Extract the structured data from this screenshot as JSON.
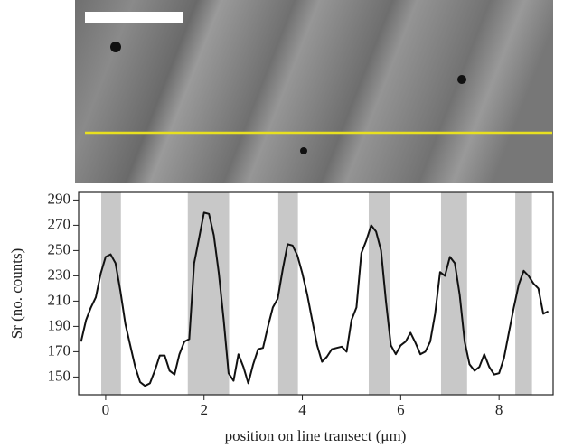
{
  "chart_data": {
    "type": "line",
    "x_label": "position on line transect (μm)",
    "y_label": "Sr (no. counts)",
    "x": [
      -0.5,
      -0.4,
      -0.3,
      -0.2,
      -0.1,
      0,
      0.1,
      0.2,
      0.3,
      0.4,
      0.5,
      0.6,
      0.7,
      0.8,
      0.9,
      1,
      1.1,
      1.2,
      1.3,
      1.4,
      1.5,
      1.6,
      1.7,
      1.8,
      1.9,
      2,
      2.1,
      2.2,
      2.3,
      2.4,
      2.5,
      2.6,
      2.7,
      2.8,
      2.9,
      3,
      3.1,
      3.2,
      3.3,
      3.4,
      3.5,
      3.6,
      3.7,
      3.8,
      3.9,
      4,
      4.1,
      4.2,
      4.3,
      4.4,
      4.5,
      4.6,
      4.7,
      4.8,
      4.9,
      5,
      5.1,
      5.2,
      5.3,
      5.4,
      5.5,
      5.6,
      5.7,
      5.8,
      5.9,
      6,
      6.1,
      6.2,
      6.3,
      6.4,
      6.5,
      6.6,
      6.7,
      6.8,
      6.9,
      7,
      7.1,
      7.2,
      7.3,
      7.4,
      7.5,
      7.6,
      7.7,
      7.8,
      7.9,
      8,
      8.1,
      8.2,
      8.3,
      8.4,
      8.5,
      8.6,
      8.7,
      8.8,
      8.9,
      9
    ],
    "values": [
      178,
      195,
      205,
      213,
      232,
      245,
      247,
      240,
      218,
      192,
      175,
      158,
      146,
      143,
      145,
      155,
      167,
      167,
      155,
      152,
      168,
      178,
      180,
      240,
      260,
      280,
      279,
      262,
      232,
      195,
      153,
      147,
      168,
      158,
      145,
      160,
      172,
      173,
      190,
      205,
      212,
      235,
      255,
      254,
      246,
      232,
      215,
      195,
      175,
      162,
      166,
      172,
      173,
      174,
      170,
      195,
      205,
      248,
      258,
      270,
      265,
      250,
      210,
      175,
      168,
      175,
      178,
      185,
      177,
      168,
      170,
      178,
      200,
      233,
      230,
      245,
      240,
      215,
      178,
      160,
      155,
      158,
      168,
      158,
      152,
      153,
      165,
      185,
      205,
      223,
      234,
      230,
      224,
      220,
      200,
      202
    ],
    "color": "#111111",
    "bands": [
      [
        -0.09,
        0.31
      ],
      [
        1.67,
        2.51
      ],
      [
        3.51,
        3.91
      ],
      [
        5.35,
        5.78
      ],
      [
        6.82,
        7.35
      ],
      [
        8.33,
        8.67
      ]
    ],
    "band_color": "#c8c8c8",
    "xlim": [
      -0.55,
      9.1
    ],
    "ylim": [
      136,
      296
    ],
    "xticks": [
      0,
      2,
      4,
      6,
      8
    ],
    "yticks": [
      150,
      170,
      190,
      210,
      230,
      250,
      270,
      290
    ]
  }
}
